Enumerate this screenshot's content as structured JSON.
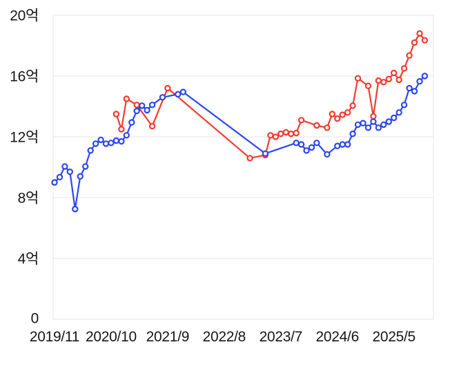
{
  "chart_data": {
    "type": "line",
    "title": "",
    "legend": "none",
    "grid": "horizontal",
    "marker_style": "open-circle",
    "x_axis": {
      "unit": "year/month",
      "tick_labels": [
        "2019/11",
        "2020/10",
        "2021/9",
        "2022/8",
        "2023/7",
        "2024/6",
        "2025/5"
      ],
      "tick_months": [
        0,
        11,
        22,
        33,
        44,
        55,
        66
      ],
      "range_months": [
        0,
        73
      ],
      "month_zero": "2019/11"
    },
    "y_axis": {
      "unit": "억",
      "tick_labels": [
        "20억",
        "16억",
        "12억",
        "8억",
        "4억",
        "0"
      ],
      "tick_values": [
        20,
        16,
        12,
        8,
        4,
        0
      ],
      "range": [
        0,
        20
      ]
    },
    "series": [
      {
        "id": "red",
        "color": "#f13a2e",
        "points": [
          [
            12,
            13.5
          ],
          [
            13,
            12.5
          ],
          [
            14,
            14.5
          ],
          [
            16,
            14.1
          ],
          [
            19,
            12.7
          ],
          [
            22,
            15.2
          ],
          [
            38,
            10.6
          ],
          [
            41,
            10.8
          ],
          [
            42,
            12.1
          ],
          [
            43,
            12.0
          ],
          [
            44,
            12.2
          ],
          [
            45,
            12.3
          ],
          [
            46,
            12.2
          ],
          [
            47,
            12.25
          ],
          [
            48,
            13.1
          ],
          [
            51,
            12.75
          ],
          [
            53,
            12.6
          ],
          [
            54,
            13.5
          ],
          [
            55,
            13.2
          ],
          [
            56,
            13.45
          ],
          [
            57,
            13.6
          ],
          [
            58,
            14.05
          ],
          [
            59,
            15.85
          ],
          [
            61,
            15.35
          ],
          [
            62,
            13.35
          ],
          [
            63,
            15.7
          ],
          [
            64,
            15.6
          ],
          [
            65,
            15.8
          ],
          [
            66,
            16.2
          ],
          [
            67,
            15.75
          ],
          [
            68,
            16.5
          ],
          [
            69,
            17.35
          ],
          [
            70,
            18.2
          ],
          [
            71,
            18.8
          ],
          [
            72,
            18.35
          ]
        ]
      },
      {
        "id": "blue",
        "color": "#2c46ee",
        "points": [
          [
            0,
            9.0
          ],
          [
            1,
            9.35
          ],
          [
            2,
            10.05
          ],
          [
            3,
            9.7
          ],
          [
            4,
            7.25
          ],
          [
            5,
            9.4
          ],
          [
            6,
            10.05
          ],
          [
            7,
            11.1
          ],
          [
            8,
            11.55
          ],
          [
            9,
            11.8
          ],
          [
            10,
            11.55
          ],
          [
            11,
            11.6
          ],
          [
            12,
            11.75
          ],
          [
            13,
            11.7
          ],
          [
            14,
            12.1
          ],
          [
            15,
            12.95
          ],
          [
            16,
            13.7
          ],
          [
            17,
            14.05
          ],
          [
            18,
            13.75
          ],
          [
            19,
            14.1
          ],
          [
            21,
            14.6
          ],
          [
            24,
            14.8
          ],
          [
            25,
            14.95
          ],
          [
            41,
            10.9
          ],
          [
            47,
            11.6
          ],
          [
            48,
            11.5
          ],
          [
            49,
            11.1
          ],
          [
            50,
            11.3
          ],
          [
            51,
            11.6
          ],
          [
            53,
            10.85
          ],
          [
            55,
            11.4
          ],
          [
            56,
            11.5
          ],
          [
            57,
            11.5
          ],
          [
            58,
            12.2
          ],
          [
            59,
            12.8
          ],
          [
            60,
            12.9
          ],
          [
            61,
            12.6
          ],
          [
            62,
            13.0
          ],
          [
            63,
            12.6
          ],
          [
            64,
            12.8
          ],
          [
            65,
            13.0
          ],
          [
            66,
            13.25
          ],
          [
            67,
            13.6
          ],
          [
            68,
            14.1
          ],
          [
            69,
            15.2
          ],
          [
            70,
            15.0
          ],
          [
            71,
            15.65
          ],
          [
            72,
            16.0
          ]
        ]
      }
    ]
  }
}
